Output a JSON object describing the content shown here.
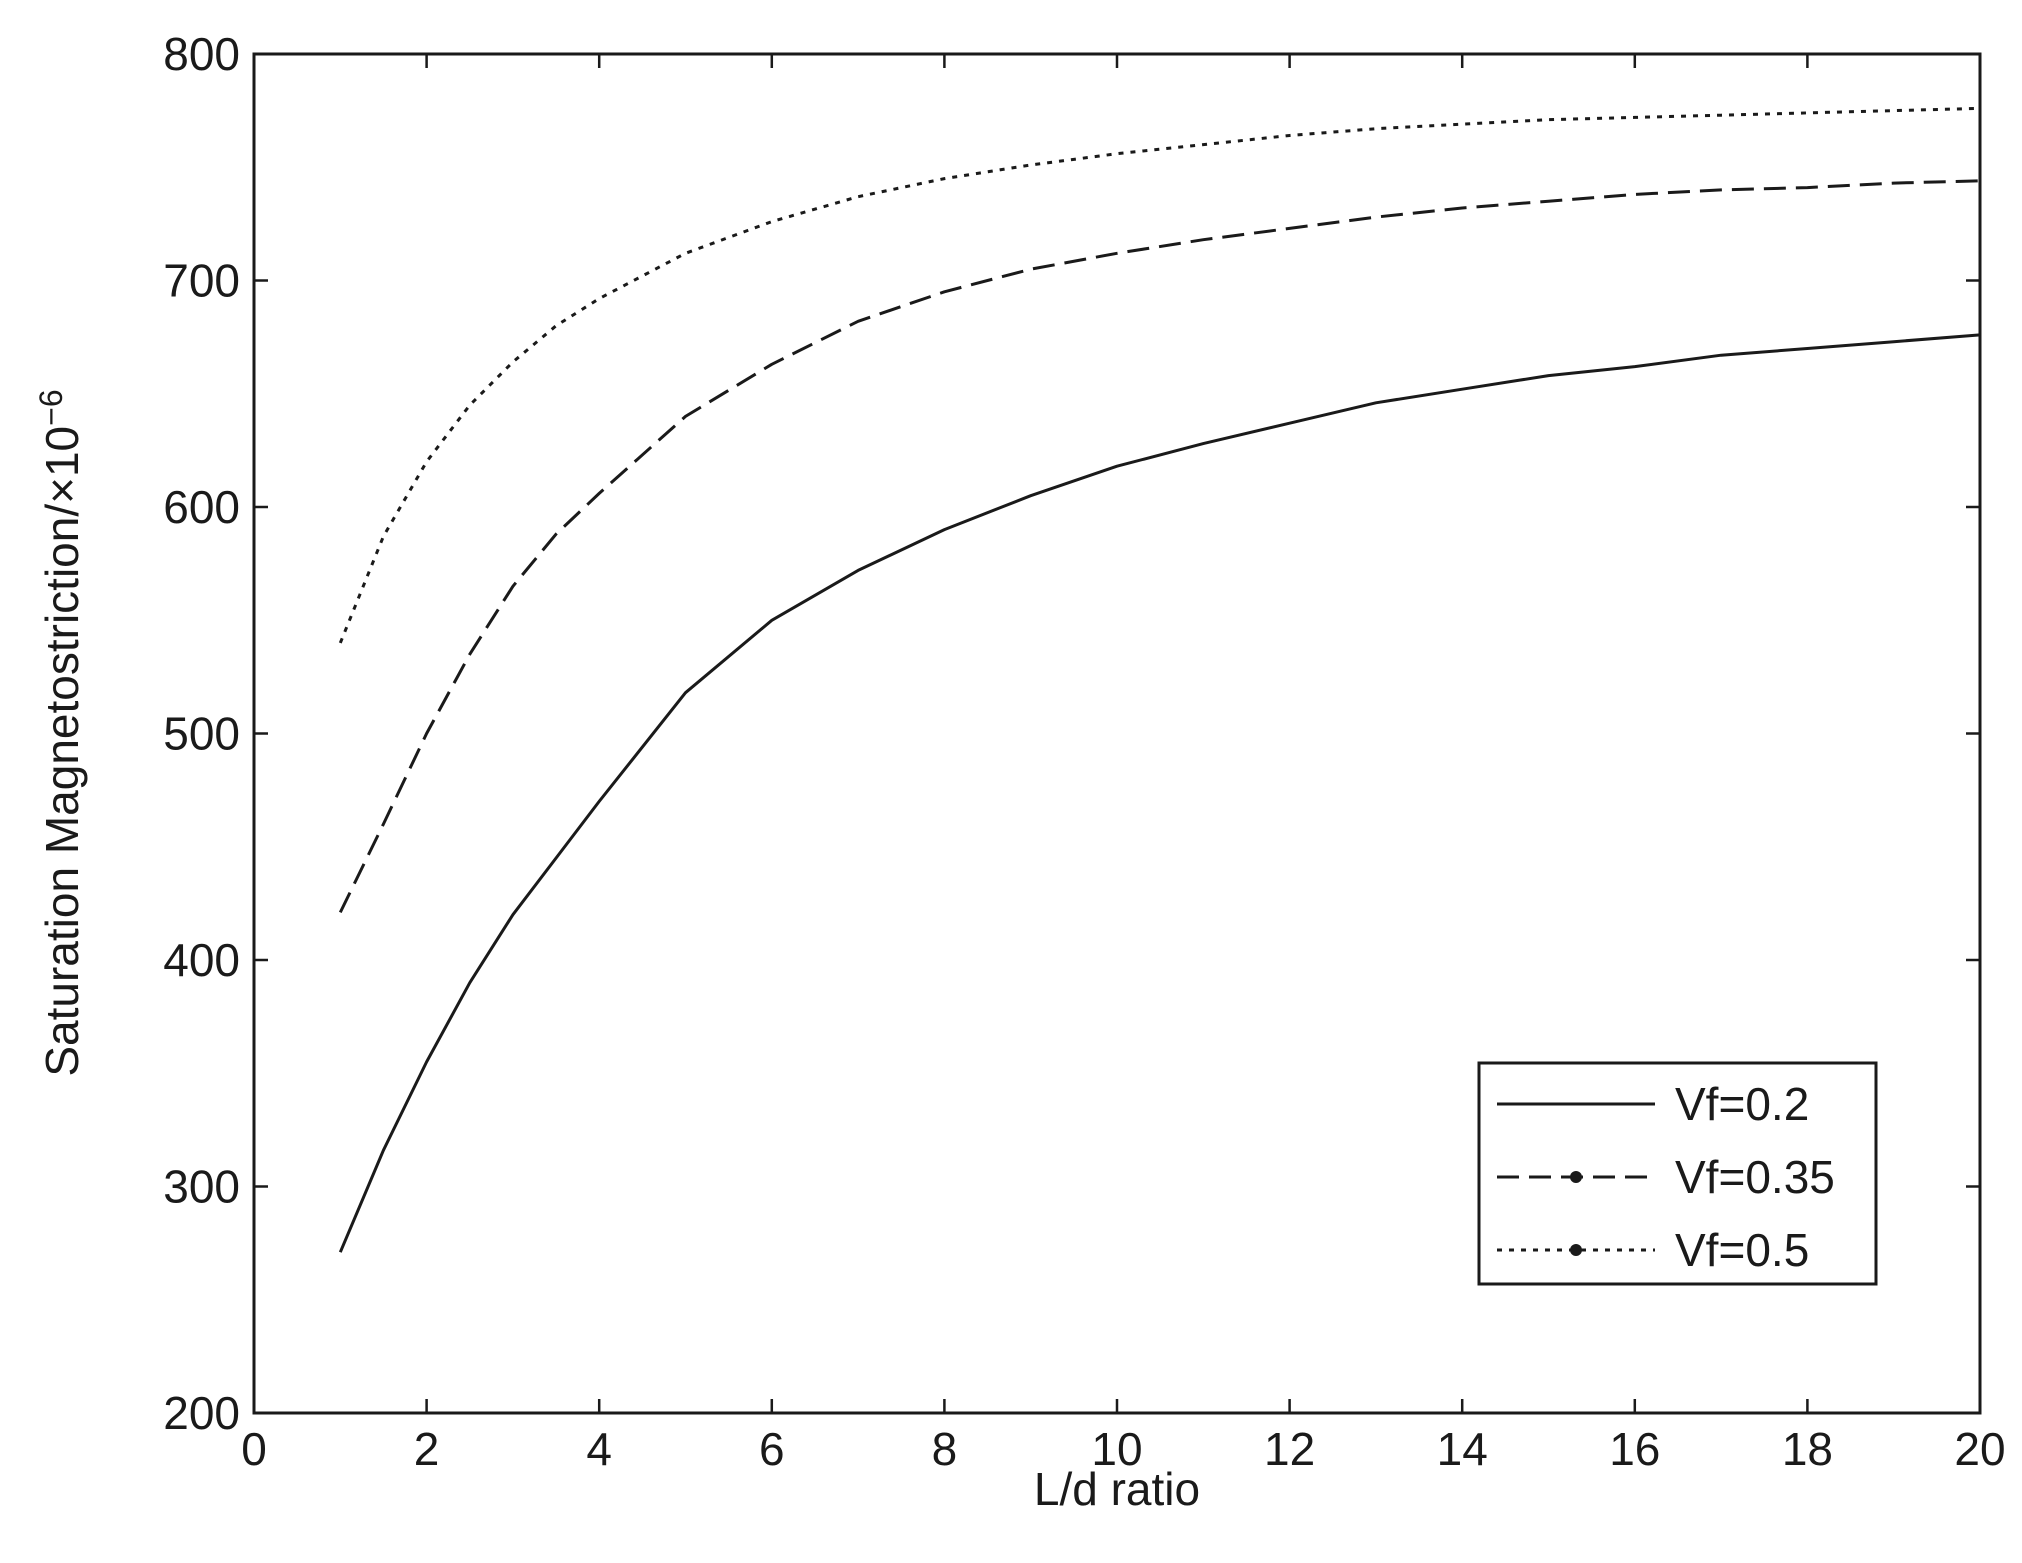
{
  "chart_data": {
    "type": "line",
    "xlabel": "L/d ratio",
    "ylabel": "Saturation Magnetostriction/×10",
    "ylabel_exponent": "−6",
    "xlim": [
      0,
      20
    ],
    "ylim": [
      200,
      800
    ],
    "xticks": [
      0,
      2,
      4,
      6,
      8,
      10,
      12,
      14,
      16,
      18,
      20
    ],
    "yticks": [
      200,
      300,
      400,
      500,
      600,
      700,
      800
    ],
    "grid": false,
    "legend_position": "bottom-right",
    "colors": {
      "line": "#1a1a1a",
      "axes": "#1a1a1a",
      "background": "#ffffff"
    },
    "series": [
      {
        "name": "Vf=0.2",
        "style": "solid",
        "x": [
          1,
          1.5,
          2,
          2.5,
          3,
          3.5,
          4,
          5,
          6,
          7,
          8,
          9,
          10,
          11,
          12,
          13,
          14,
          15,
          16,
          17,
          18,
          19,
          20
        ],
        "y": [
          271,
          316,
          355,
          390,
          420,
          445,
          470,
          518,
          550,
          572,
          590,
          605,
          618,
          628,
          637,
          646,
          652,
          658,
          662,
          667,
          670,
          673,
          676
        ]
      },
      {
        "name": "Vf=0.35",
        "style": "dashed",
        "x": [
          1,
          1.5,
          2,
          2.5,
          3,
          3.5,
          4,
          5,
          6,
          7,
          8,
          9,
          10,
          11,
          12,
          13,
          14,
          15,
          16,
          17,
          18,
          19,
          20
        ],
        "y": [
          421,
          460,
          500,
          535,
          565,
          588,
          606,
          640,
          663,
          682,
          695,
          705,
          712,
          718,
          723,
          728,
          732,
          735,
          738,
          740,
          741,
          743,
          744
        ]
      },
      {
        "name": "Vf=0.5",
        "style": "dotted",
        "x": [
          1,
          1.5,
          2,
          2.5,
          3,
          3.5,
          4,
          5,
          6,
          7,
          8,
          9,
          10,
          11,
          12,
          13,
          14,
          15,
          16,
          17,
          18,
          19,
          20
        ],
        "y": [
          540,
          587,
          620,
          645,
          664,
          680,
          692,
          712,
          726,
          737,
          745,
          751,
          756,
          760,
          764,
          767,
          769,
          771,
          772,
          773,
          774,
          775,
          776
        ]
      }
    ]
  }
}
